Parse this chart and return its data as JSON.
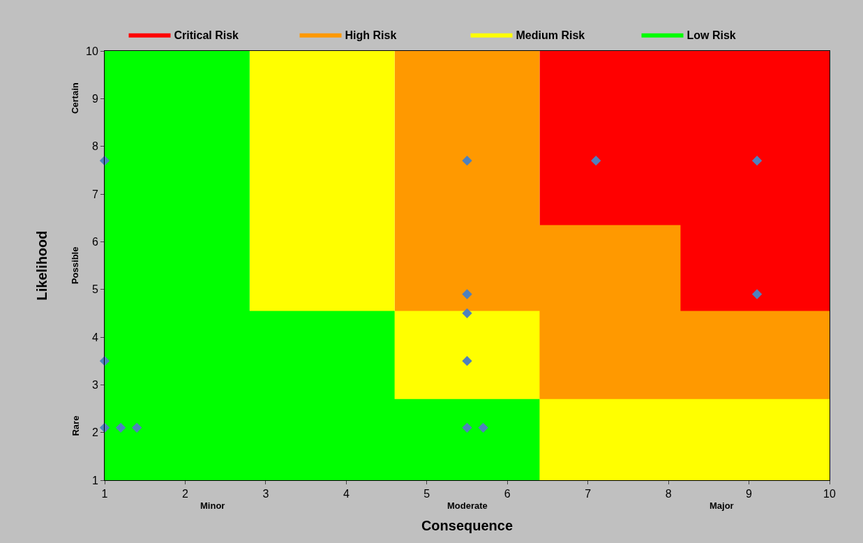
{
  "chart_data": {
    "type": "area",
    "xlabel": "Consequence",
    "ylabel": "Likelihood",
    "xlim": [
      1,
      10
    ],
    "xticks": [
      1,
      2,
      3,
      4,
      5,
      6,
      7,
      8,
      9,
      10
    ],
    "ylim": [
      1,
      10
    ],
    "yticks": [
      1,
      2,
      3,
      4,
      5,
      6,
      7,
      8,
      9,
      10
    ],
    "legend": "top",
    "annotations": [
      "Minor",
      "Moderate",
      "Major",
      "Rare",
      "Possible",
      "Certain"
    ],
    "series": [
      {
        "name": "Critical Risk",
        "color": "#ff0000",
        "x": [
          6.4,
          10
        ],
        "values": [
          10,
          10
        ]
      },
      {
        "name": "High Risk",
        "color": "#ff9900",
        "x": [
          4.6,
          6.4,
          6.4,
          8.15,
          8.15,
          10
        ],
        "values": [
          10,
          10,
          6.35,
          6.35,
          4.55,
          4.55
        ]
      },
      {
        "name": "Medium Risk",
        "color": "#ffff00",
        "x": [
          2.8,
          4.6,
          4.6,
          6.4,
          6.4,
          10
        ],
        "values": [
          10,
          10,
          4.55,
          4.55,
          2.7,
          2.7
        ]
      },
      {
        "name": "Low Risk",
        "color": "#00ff00",
        "x": [
          1,
          2.8,
          2.8,
          4.6,
          4.6,
          6.4
        ],
        "values": [
          10,
          10,
          4.55,
          4.55,
          2.7,
          2.7
        ]
      },
      {
        "type": "scatter",
        "marker": "diamond",
        "color": "#4f81bd",
        "x": [
          1,
          1,
          1,
          1.2,
          1.4,
          5.5,
          5.5,
          5.5,
          5.5,
          5.5,
          5.7,
          7.1,
          9.1,
          9.1
        ],
        "values": [
          7.7,
          3.5,
          2.1,
          2.1,
          2.1,
          7.7,
          4.9,
          4.5,
          3.5,
          2.1,
          2.1,
          7.7,
          7.7,
          4.9
        ]
      }
    ]
  }
}
